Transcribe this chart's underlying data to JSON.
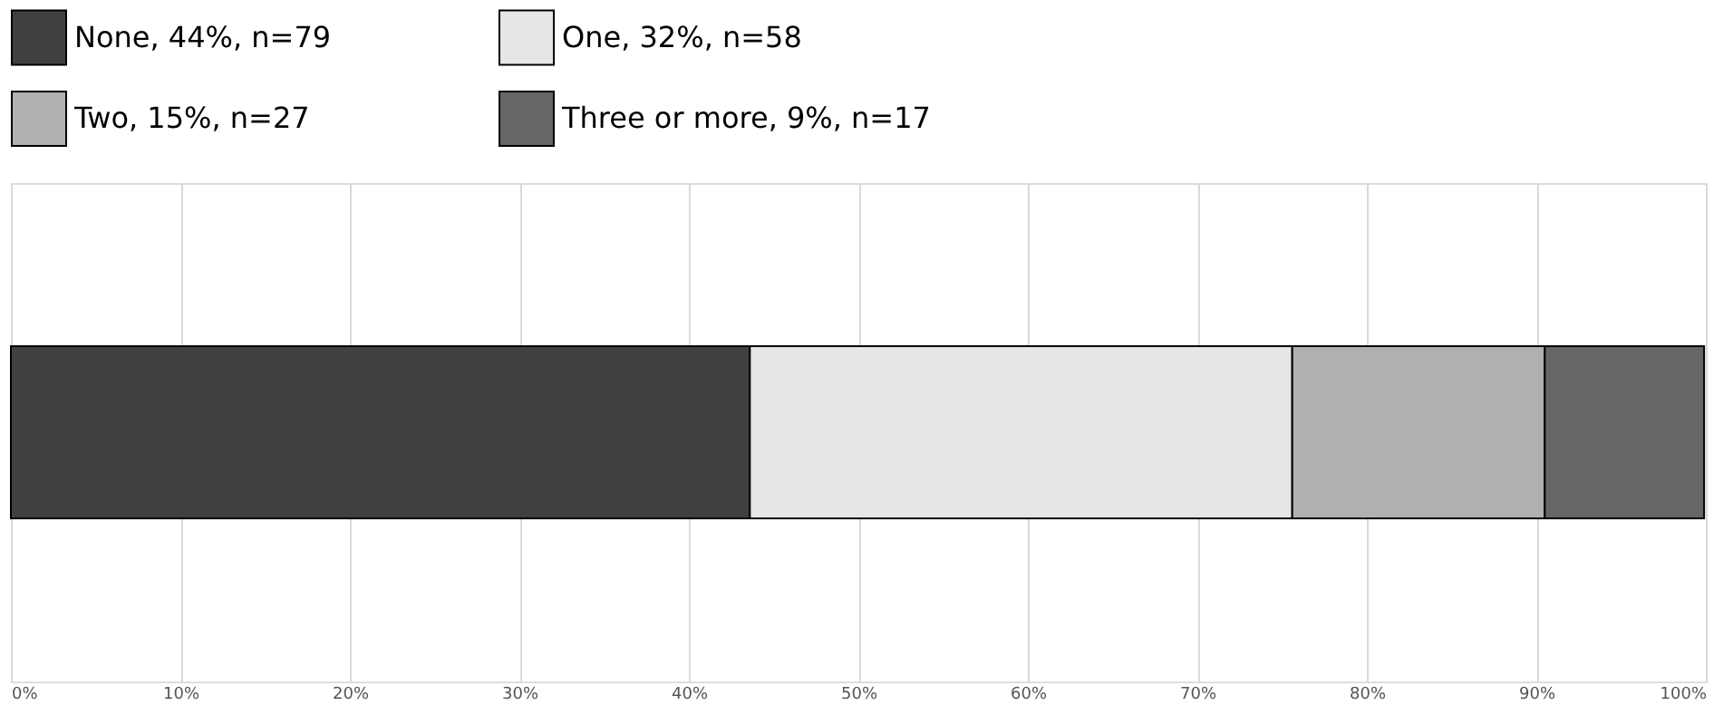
{
  "chart_data": {
    "type": "bar",
    "orientation": "horizontal",
    "stacked": true,
    "categories": [
      null
    ],
    "series": [
      {
        "name": "None, 44%, n=79",
        "color": "#404040",
        "values": [
          43.6
        ]
      },
      {
        "name": "One, 32%, n=58",
        "color": "#e6e6e6",
        "values": [
          32.0
        ]
      },
      {
        "name": "Two, 15%, n=27",
        "color": "#b0b0b0",
        "values": [
          14.9
        ]
      },
      {
        "name": "Three or more, 9%, n=17",
        "color": "#666666",
        "values": [
          9.4
        ]
      }
    ],
    "xlim": [
      0,
      100
    ],
    "xticks": [
      {
        "value": 0,
        "label": "0%"
      },
      {
        "value": 10,
        "label": "10%"
      },
      {
        "value": 20,
        "label": "20%"
      },
      {
        "value": 30,
        "label": "30%"
      },
      {
        "value": 40,
        "label": "40%"
      },
      {
        "value": 50,
        "label": "50%"
      },
      {
        "value": 60,
        "label": "60%"
      },
      {
        "value": 70,
        "label": "70%"
      },
      {
        "value": 80,
        "label": "80%"
      },
      {
        "value": 90,
        "label": "90%"
      },
      {
        "value": 100,
        "label": "100%"
      }
    ],
    "grid": "x",
    "legend": "top"
  }
}
